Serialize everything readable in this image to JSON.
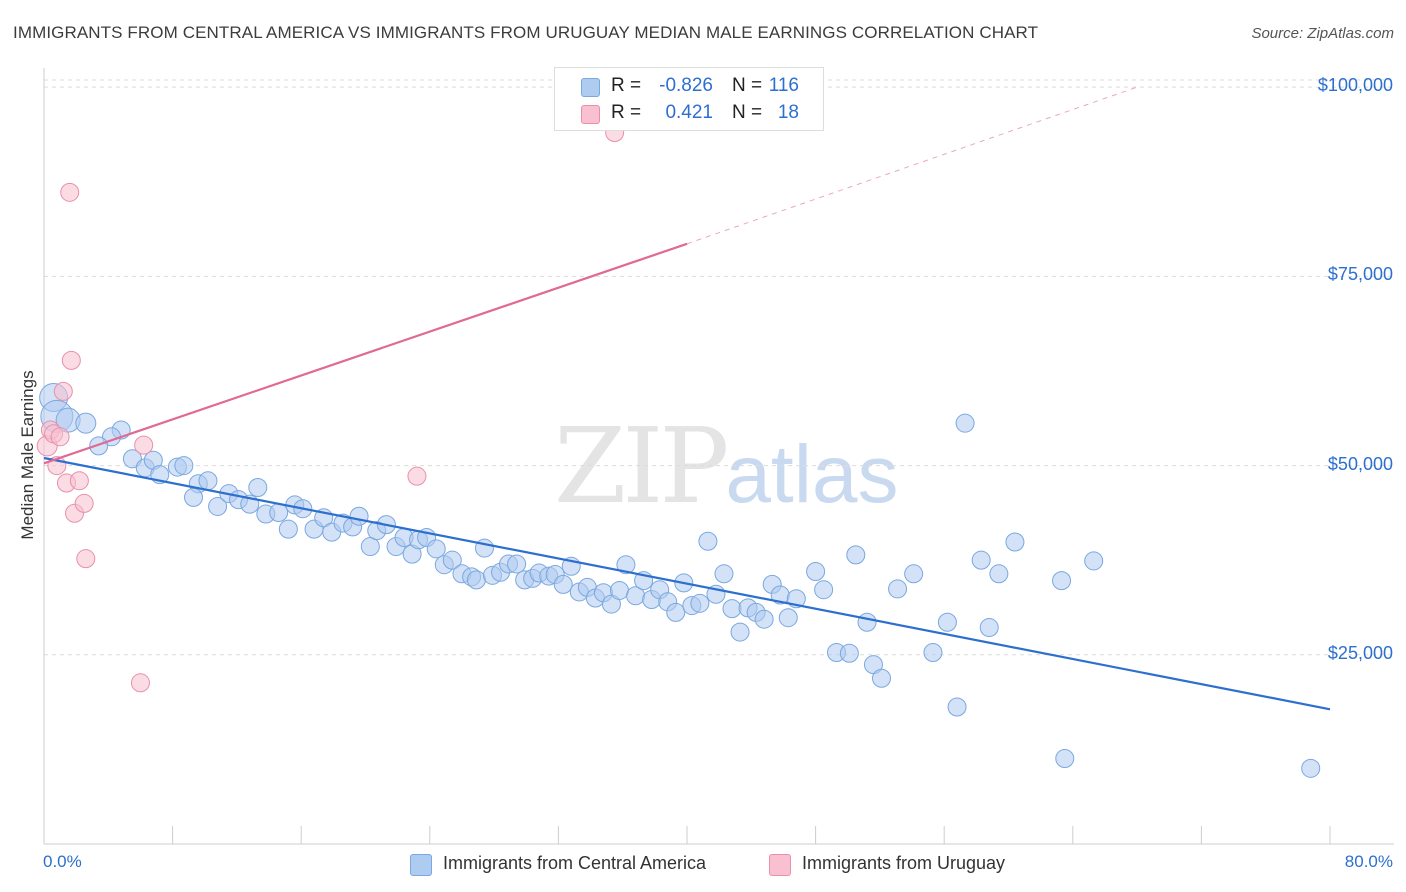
{
  "title": "IMMIGRANTS FROM CENTRAL AMERICA VS IMMIGRANTS FROM URUGUAY MEDIAN MALE EARNINGS CORRELATION CHART",
  "source": "Source: ZipAtlas.com",
  "watermark": {
    "zip": "ZIP",
    "atlas": "atlas"
  },
  "legend_stats": [
    {
      "r_label": "R =",
      "r_value": "-0.826",
      "n_label": "N =",
      "n_value": "116",
      "color": "#aecbf0",
      "border": "#7aa8e0"
    },
    {
      "r_label": "R =",
      "r_value": "0.421",
      "n_label": "N =",
      "n_value": "18",
      "color": "#f8c0d0",
      "border": "#e890aa"
    }
  ],
  "chart_data": {
    "type": "scatter",
    "title": "IMMIGRANTS FROM CENTRAL AMERICA VS IMMIGRANTS FROM URUGUAY MEDIAN MALE EARNINGS CORRELATION CHART",
    "xlabel": "",
    "ylabel": "Median Male Earnings",
    "xlim": [
      0,
      80
    ],
    "ylim": [
      0,
      102000
    ],
    "x_tick_labels": [
      "0.0%",
      "80.0%"
    ],
    "y_ticks": [
      25000,
      50000,
      75000,
      100000
    ],
    "y_tick_labels": [
      "$25,000",
      "$50,000",
      "$75,000",
      "$100,000"
    ],
    "grid": "horizontal dashed",
    "legend_position": "bottom",
    "series": [
      {
        "name": "Immigrants from Central America",
        "color": "#7aa8e0",
        "fill": "#aecbf0",
        "trend": {
          "x": [
            0,
            80
          ],
          "y": [
            51000,
            17800
          ],
          "style": "solid",
          "color": "#2d6fcf"
        },
        "points": [
          [
            0.6,
            59000,
            14
          ],
          [
            0.8,
            56500,
            16
          ],
          [
            1.5,
            56000,
            12
          ],
          [
            2.6,
            55600,
            10
          ],
          [
            4.8,
            54700,
            9
          ],
          [
            4.2,
            53800,
            9
          ],
          [
            3.4,
            52600,
            9
          ],
          [
            5.5,
            50900,
            9
          ],
          [
            6.3,
            49700,
            9
          ],
          [
            6.8,
            50700,
            9
          ],
          [
            7.2,
            48800,
            9
          ],
          [
            8.3,
            49800,
            9
          ],
          [
            8.7,
            50000,
            9
          ],
          [
            9.6,
            47600,
            9
          ],
          [
            10.2,
            48000,
            9
          ],
          [
            9.3,
            45800,
            9
          ],
          [
            10.8,
            44600,
            9
          ],
          [
            11.5,
            46300,
            9
          ],
          [
            12.1,
            45500,
            9
          ],
          [
            12.8,
            44900,
            9
          ],
          [
            13.3,
            47100,
            9
          ],
          [
            13.8,
            43600,
            9
          ],
          [
            14.6,
            43800,
            9
          ],
          [
            15.2,
            41600,
            9
          ],
          [
            15.6,
            44800,
            9
          ],
          [
            16.1,
            44300,
            9
          ],
          [
            16.8,
            41600,
            9
          ],
          [
            17.4,
            43100,
            9
          ],
          [
            17.9,
            41200,
            9
          ],
          [
            18.6,
            42400,
            9
          ],
          [
            19.2,
            41900,
            9
          ],
          [
            19.6,
            43300,
            9
          ],
          [
            20.3,
            39300,
            9
          ],
          [
            20.7,
            41400,
            9
          ],
          [
            21.3,
            42200,
            9
          ],
          [
            21.9,
            39300,
            9
          ],
          [
            22.4,
            40500,
            9
          ],
          [
            22.9,
            38300,
            9
          ],
          [
            23.3,
            40200,
            9
          ],
          [
            23.8,
            40500,
            9
          ],
          [
            24.4,
            39000,
            9
          ],
          [
            24.9,
            36900,
            9
          ],
          [
            25.4,
            37500,
            9
          ],
          [
            26.0,
            35700,
            9
          ],
          [
            26.6,
            35300,
            9
          ],
          [
            26.9,
            34900,
            9
          ],
          [
            27.4,
            39100,
            9
          ],
          [
            27.9,
            35500,
            9
          ],
          [
            28.4,
            35900,
            9
          ],
          [
            28.9,
            37000,
            9
          ],
          [
            29.4,
            37000,
            9
          ],
          [
            29.9,
            34900,
            9
          ],
          [
            30.4,
            35100,
            9
          ],
          [
            30.8,
            35800,
            9
          ],
          [
            31.4,
            35400,
            9
          ],
          [
            31.8,
            35600,
            9
          ],
          [
            32.3,
            34300,
            9
          ],
          [
            32.8,
            36700,
            9
          ],
          [
            33.3,
            33300,
            9
          ],
          [
            33.8,
            33900,
            9
          ],
          [
            34.3,
            32500,
            9
          ],
          [
            34.8,
            33200,
            9
          ],
          [
            35.3,
            31700,
            9
          ],
          [
            35.8,
            33500,
            9
          ],
          [
            36.2,
            36900,
            9
          ],
          [
            36.8,
            32800,
            9
          ],
          [
            37.3,
            34800,
            9
          ],
          [
            37.8,
            32300,
            9
          ],
          [
            38.3,
            33600,
            9
          ],
          [
            38.8,
            32000,
            9
          ],
          [
            39.3,
            30600,
            9
          ],
          [
            39.8,
            34500,
            9
          ],
          [
            40.3,
            31500,
            9
          ],
          [
            40.8,
            31800,
            9
          ],
          [
            41.3,
            40000,
            9
          ],
          [
            41.8,
            33000,
            9
          ],
          [
            42.3,
            35700,
            9
          ],
          [
            42.8,
            31100,
            9
          ],
          [
            43.3,
            28000,
            9
          ],
          [
            43.8,
            31200,
            9
          ],
          [
            44.3,
            30600,
            9
          ],
          [
            44.8,
            29700,
            9
          ],
          [
            45.3,
            34300,
            9
          ],
          [
            45.8,
            32900,
            9
          ],
          [
            46.3,
            29900,
            9
          ],
          [
            46.8,
            32400,
            9
          ],
          [
            48.0,
            36000,
            9
          ],
          [
            48.5,
            33600,
            9
          ],
          [
            49.3,
            25300,
            9
          ],
          [
            50.1,
            25200,
            9
          ],
          [
            50.5,
            38200,
            9
          ],
          [
            51.2,
            29300,
            9
          ],
          [
            51.6,
            23700,
            9
          ],
          [
            52.1,
            21900,
            9
          ],
          [
            53.1,
            33700,
            9
          ],
          [
            54.1,
            35700,
            9
          ],
          [
            55.3,
            25300,
            9
          ],
          [
            56.2,
            29300,
            9
          ],
          [
            56.8,
            18100,
            9
          ],
          [
            57.3,
            55600,
            9
          ],
          [
            58.3,
            37500,
            9
          ],
          [
            58.8,
            28600,
            9
          ],
          [
            59.4,
            35700,
            9
          ],
          [
            60.4,
            39900,
            9
          ],
          [
            63.3,
            34800,
            9
          ],
          [
            63.5,
            11300,
            9
          ],
          [
            65.3,
            37400,
            9
          ],
          [
            78.8,
            10000,
            9
          ]
        ]
      },
      {
        "name": "Immigrants from Uruguay",
        "color": "#e890aa",
        "fill": "#f8c0d0",
        "trend": {
          "x": [
            0,
            40
          ],
          "y": [
            50300,
            79300
          ],
          "style": "solid",
          "color": "#e06a94",
          "extension": {
            "x": [
              40,
              68
            ],
            "y": [
              79300,
              100000
            ],
            "style": "dashed"
          }
        },
        "points": [
          [
            0.2,
            52600,
            10
          ],
          [
            0.4,
            54700,
            9
          ],
          [
            0.6,
            54200,
            9
          ],
          [
            0.8,
            50000,
            9
          ],
          [
            1.0,
            53800,
            9
          ],
          [
            1.2,
            59800,
            9
          ],
          [
            1.4,
            47700,
            9
          ],
          [
            1.6,
            86100,
            9
          ],
          [
            1.7,
            63900,
            9
          ],
          [
            1.9,
            43700,
            9
          ],
          [
            2.2,
            48000,
            9
          ],
          [
            2.5,
            45000,
            9
          ],
          [
            2.6,
            37700,
            9
          ],
          [
            6.0,
            21300,
            9
          ],
          [
            6.2,
            52700,
            9
          ],
          [
            23.2,
            48600,
            9
          ],
          [
            35.5,
            94000,
            9
          ]
        ]
      }
    ]
  }
}
